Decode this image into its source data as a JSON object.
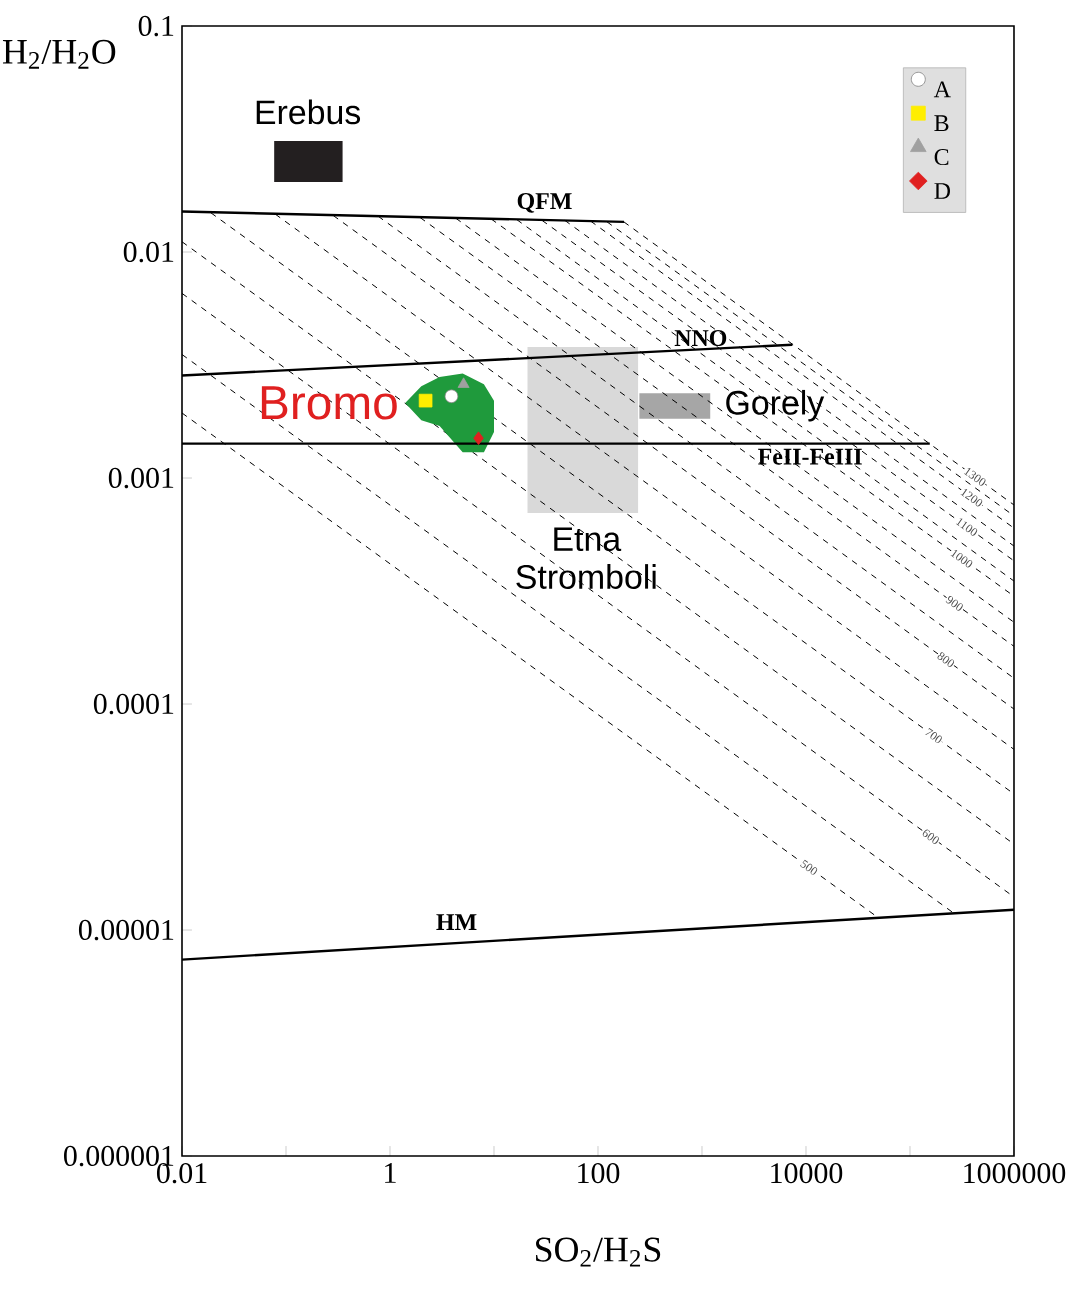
{
  "chart_data": {
    "type": "scatter",
    "xlabel": "SO$_{2}$/H$_{2}$S",
    "ylabel": "H$_{2}$/H$_{2}$O",
    "log": "xy",
    "xlim": [
      0.01,
      1000000
    ],
    "ylim": [
      1e-06,
      0.1
    ],
    "xticks": [
      0.01,
      {
        "value": 0.1,
        "label": null
      },
      1,
      {
        "value": 10,
        "label": null
      },
      100,
      {
        "value": 1000,
        "label": null
      },
      10000,
      {
        "value": 100000,
        "label": null
      },
      1000000
    ],
    "yticks": [
      {
        "value": 1e-06,
        "label": "0.000001"
      },
      {
        "value": 1e-05,
        "label": "0.00001"
      },
      0.0001,
      0.001,
      0.01,
      0.1
    ],
    "legend": "top right",
    "series": [
      {
        "type": "area",
        "color": "#d9d9d9",
        "x": [
          21,
          243,
          243,
          21
        ],
        "values": [
          0.0038,
          0.0038,
          0.0007,
          0.0007
        ]
      },
      {
        "type": "area",
        "color": "#a6a6a6",
        "x": [
          250,
          1200,
          1200,
          250
        ],
        "values": [
          0.00237,
          0.00237,
          0.00183,
          0.00183
        ]
      },
      {
        "type": "line",
        "name": "1300",
        "color": "#000000",
        "line_style": "dashed",
        "x": [
          177,
          1000000
        ],
        "values": [
          0.0136,
          0.00076
        ]
      },
      {
        "type": "line",
        "color": "#000000",
        "line_style": "dashed",
        "x": [
          122,
          1000000
        ],
        "values": [
          0.0136,
          0.00068
        ]
      },
      {
        "type": "line",
        "name": "1200",
        "color": "#000000",
        "line_style": "dashed",
        "x": [
          85,
          1000000
        ],
        "values": [
          0.0137,
          0.0006
        ]
      },
      {
        "type": "line",
        "color": "#000000",
        "line_style": "dashed",
        "x": [
          48,
          1000000
        ],
        "values": [
          0.0138,
          0.0005
        ]
      },
      {
        "type": "line",
        "name": "1100",
        "color": "#000000",
        "line_style": "dashed",
        "x": [
          29,
          1000000
        ],
        "values": [
          0.0138,
          0.00043
        ]
      },
      {
        "type": "line",
        "color": "#000000",
        "line_style": "dashed",
        "x": [
          16.6,
          1000000
        ],
        "values": [
          0.0139,
          0.00035
        ]
      },
      {
        "type": "line",
        "name": "1000",
        "color": "#000000",
        "line_style": "dashed",
        "x": [
          9.4,
          1000000
        ],
        "values": [
          0.014,
          0.0003
        ]
      },
      {
        "type": "line",
        "color": "#000000",
        "line_style": "dashed",
        "x": [
          4.3,
          1000000
        ],
        "values": [
          0.0141,
          0.00023
        ]
      },
      {
        "type": "line",
        "name": "900",
        "color": "#000000",
        "line_style": "dashed",
        "x": [
          1.95,
          1000000
        ],
        "values": [
          0.0142,
          0.00018
        ]
      },
      {
        "type": "line",
        "color": "#000000",
        "line_style": "dashed",
        "x": [
          0.77,
          1000000
        ],
        "values": [
          0.0144,
          0.00013
        ]
      },
      {
        "type": "line",
        "name": "800",
        "color": "#000000",
        "line_style": "dashed",
        "x": [
          0.285,
          1000000
        ],
        "values": [
          0.0145,
          9.5e-05
        ]
      },
      {
        "type": "line",
        "color": "#000000",
        "line_style": "dashed",
        "x": [
          0.079,
          1000000
        ],
        "values": [
          0.0147,
          6.3e-05
        ]
      },
      {
        "type": "line",
        "name": "700",
        "color": "#000000",
        "line_style": "dashed",
        "x": [
          0.019,
          1000000
        ],
        "values": [
          0.0149,
          4e-05
        ]
      },
      {
        "type": "line",
        "color": "#000000",
        "line_style": "dashed",
        "x": [
          0.01,
          1000000
        ],
        "values": [
          0.0111,
          2.4e-05
        ]
      },
      {
        "type": "line",
        "name": "600",
        "color": "#000000",
        "line_style": "dashed",
        "x": [
          0.01,
          1000000
        ],
        "values": [
          0.00656,
          1.4e-05
        ]
      },
      {
        "type": "line",
        "color": "#000000",
        "line_style": "dashed",
        "x": [
          0.01,
          262000
        ],
        "values": [
          0.00352,
          1.19e-05
        ]
      },
      {
        "type": "line",
        "name": "500",
        "color": "#000000",
        "line_style": "dashed",
        "x": [
          0.01,
          50000
        ],
        "values": [
          0.00194,
          1.13e-05
        ]
      },
      {
        "type": "area",
        "color": "#231f20",
        "x": [
          0.077,
          0.35,
          0.35,
          0.077
        ],
        "values": [
          0.031,
          0.031,
          0.0204,
          0.0204
        ]
      },
      {
        "type": "area",
        "color": "#1f9a3c",
        "x": [
          1.4,
          2,
          3,
          5,
          8,
          10,
          10,
          8,
          5,
          3,
          2
        ],
        "values": [
          0.00215,
          0.00255,
          0.0028,
          0.0029,
          0.0026,
          0.0022,
          0.0016,
          0.0013,
          0.0013,
          0.0017,
          0.0018
        ]
      },
      {
        "type": "line",
        "name": "QFM",
        "color": "#000000",
        "line_style": "solid",
        "x": [
          0.01,
          178
        ],
        "values": [
          0.0151,
          0.0136
        ]
      },
      {
        "type": "line",
        "name": "NNO",
        "color": "#000000",
        "line_style": "solid",
        "x": [
          0.01,
          7400
        ],
        "values": [
          0.00284,
          0.00389
        ]
      },
      {
        "type": "line",
        "name": "FeII-FeIII",
        "color": "#000000",
        "line_style": "solid",
        "x": [
          0.01,
          155000
        ],
        "values": [
          0.00142,
          0.00142
        ]
      },
      {
        "type": "line",
        "name": "HM",
        "color": "#000000",
        "line_style": "solid",
        "x": [
          0.01,
          1000000
        ],
        "values": [
          7.4e-06,
          1.23e-05
        ]
      },
      {
        "type": "scatter",
        "name": "A",
        "color": "#ffffff",
        "marker": "circle",
        "x": [
          3.9
        ],
        "values": [
          0.0023
        ]
      },
      {
        "type": "scatter",
        "name": "B",
        "color": "#ffee00",
        "marker": "square",
        "x": [
          2.2
        ],
        "values": [
          0.0022
        ]
      },
      {
        "type": "scatter",
        "name": "C",
        "color": "#a0a0a0",
        "marker": "triangle",
        "x": [
          5.1
        ],
        "values": [
          0.0026
        ]
      },
      {
        "type": "scatter",
        "name": "D",
        "color": "#e02020",
        "marker": "diamond",
        "x": [
          7.1
        ],
        "values": [
          0.0015
        ]
      }
    ],
    "annotations": [
      "Erebus",
      {
        "text": "Bromo",
        "x": 1.4,
        "y": 0.00215
      },
      "Gorely",
      "Etna Stromboli"
    ]
  }
}
